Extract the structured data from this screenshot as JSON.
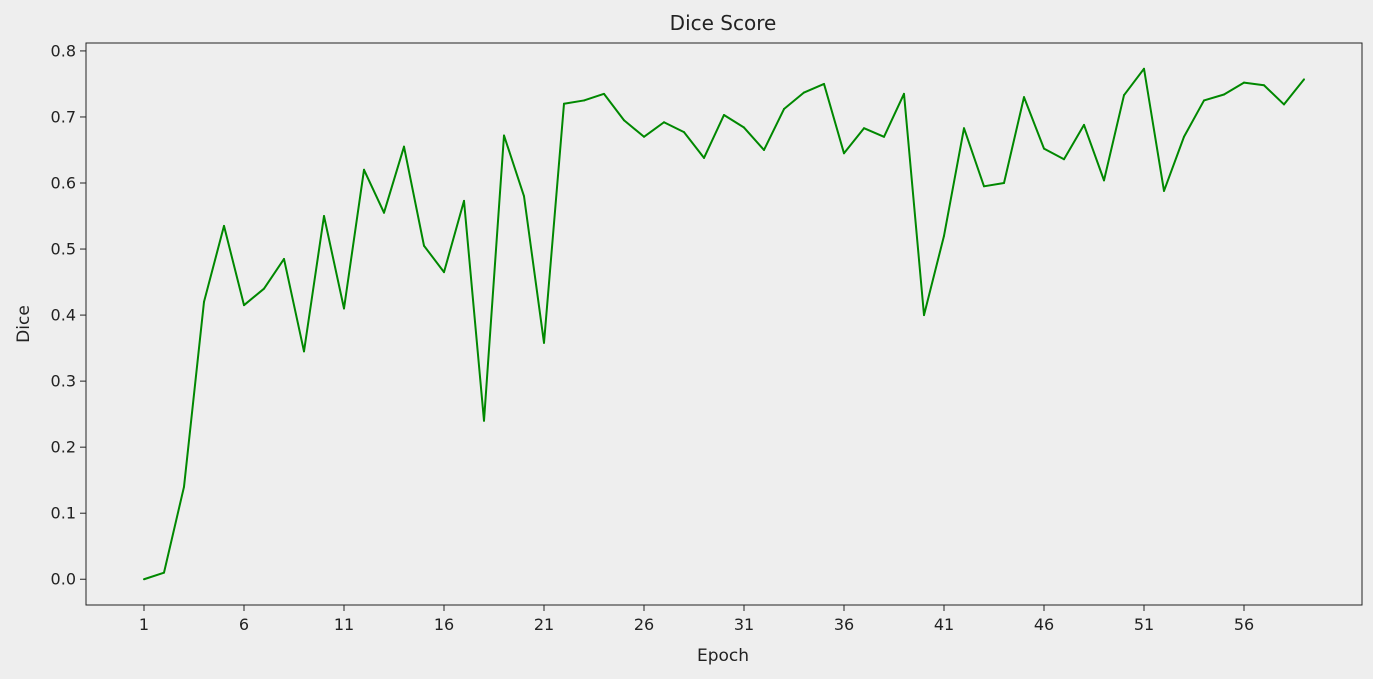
{
  "chart_data": {
    "type": "line",
    "title": "Dice Score",
    "xlabel": "Epoch",
    "ylabel": "Dice",
    "x": [
      1,
      2,
      3,
      4,
      5,
      6,
      7,
      8,
      9,
      10,
      11,
      12,
      13,
      14,
      15,
      16,
      17,
      18,
      19,
      20,
      21,
      22,
      23,
      24,
      25,
      26,
      27,
      28,
      29,
      30,
      31,
      32,
      33,
      34,
      35,
      36,
      37,
      38,
      39,
      40,
      41,
      42,
      43,
      44,
      45,
      46,
      47,
      48,
      49,
      50,
      51,
      52,
      53,
      54,
      55,
      56,
      57,
      58,
      59
    ],
    "series": [
      {
        "values": [
          0.0,
          0.01,
          0.14,
          0.42,
          0.535,
          0.415,
          0.44,
          0.485,
          0.345,
          0.55,
          0.41,
          0.62,
          0.555,
          0.655,
          0.505,
          0.465,
          0.573,
          0.24,
          0.672,
          0.58,
          0.358,
          0.72,
          0.725,
          0.735,
          0.695,
          0.67,
          0.692,
          0.677,
          0.638,
          0.703,
          0.684,
          0.65,
          0.712,
          0.737,
          0.75,
          0.645,
          0.683,
          0.67,
          0.735,
          0.4,
          0.52,
          0.683,
          0.595,
          0.6,
          0.73,
          0.652,
          0.636,
          0.688,
          0.604,
          0.733,
          0.773,
          0.588,
          0.67,
          0.725,
          0.734,
          0.752,
          0.748,
          0.719,
          0.757
        ],
        "color": "#008800"
      }
    ],
    "xticks": [
      1,
      6,
      11,
      16,
      21,
      26,
      31,
      36,
      41,
      46,
      51,
      56
    ],
    "yticks": [
      0.0,
      0.1,
      0.2,
      0.3,
      0.4,
      0.5,
      0.6,
      0.7,
      0.8
    ],
    "xlim": [
      -1.9,
      61.9
    ],
    "ylim": [
      -0.039,
      0.812
    ],
    "grid": false,
    "background": "#eeeeee"
  }
}
